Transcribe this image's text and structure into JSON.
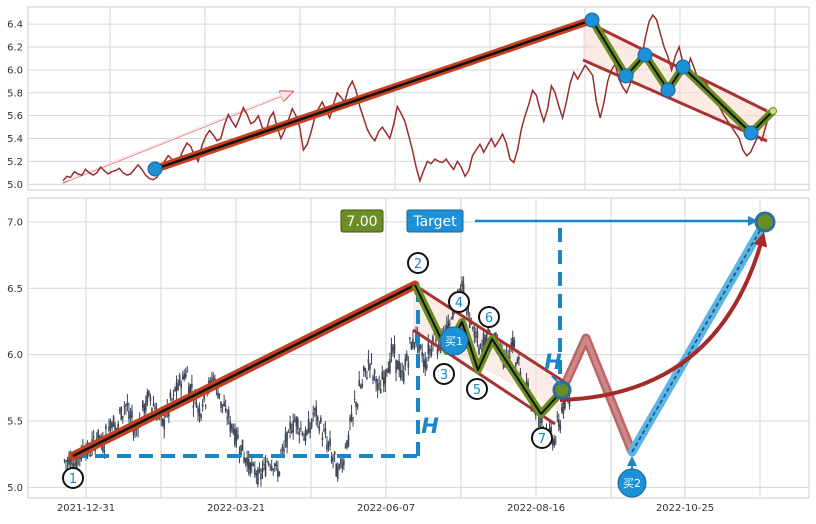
{
  "chart_data": [
    {
      "type": "line",
      "panel": "overview",
      "ylim": [
        4.95,
        6.55
      ],
      "yticks": [
        "5.0",
        "5.2",
        "5.4",
        "5.6",
        "5.8",
        "6.0",
        "6.2",
        "6.4"
      ],
      "grid": true,
      "series": [
        {
          "values": [
            5.03,
            5.07,
            5.06,
            5.11,
            5.09,
            5.08,
            5.13,
            5.1,
            5.08,
            5.1,
            5.15,
            5.12,
            5.09,
            5.11,
            5.12,
            5.14,
            5.1,
            5.08,
            5.09,
            5.13,
            5.17,
            5.13,
            5.08,
            5.05,
            5.04,
            5.06,
            5.12,
            5.2,
            5.25,
            5.22,
            5.18,
            5.22,
            5.3,
            5.36,
            5.33,
            5.25,
            5.2,
            5.34,
            5.42,
            5.47,
            5.43,
            5.38,
            5.4,
            5.52,
            5.61,
            5.55,
            5.5,
            5.58,
            5.67,
            5.61,
            5.53,
            5.55,
            5.6,
            5.5,
            5.45,
            5.58,
            5.63,
            5.5,
            5.4,
            5.47,
            5.56,
            5.66,
            5.6,
            5.5,
            5.3,
            5.35,
            5.45,
            5.58,
            5.66,
            5.72,
            5.65,
            5.58,
            5.7,
            5.8,
            5.76,
            5.72,
            5.84,
            5.9,
            5.82,
            5.68,
            5.58,
            5.48,
            5.42,
            5.38,
            5.46,
            5.5,
            5.45,
            5.4,
            5.52,
            5.68,
            5.62,
            5.55,
            5.43,
            5.3,
            5.15,
            5.03,
            5.12,
            5.2,
            5.18,
            5.22,
            5.2,
            5.19,
            5.22,
            5.17,
            5.13,
            5.2,
            5.15,
            5.07,
            5.12,
            5.25,
            5.3,
            5.35,
            5.28,
            5.34,
            5.4,
            5.33,
            5.38,
            5.44,
            5.36,
            5.22,
            5.19,
            5.3,
            5.48,
            5.6,
            5.7,
            5.82,
            5.78,
            5.65,
            5.55,
            5.66,
            5.86,
            5.8,
            5.68,
            5.58,
            5.72,
            5.88,
            5.98,
            5.92,
            5.98,
            6.04,
            6.0,
            5.95,
            5.72,
            5.58,
            5.72,
            5.9,
            6.0,
            6.05,
            5.92,
            5.85,
            5.8,
            5.88,
            6.0,
            6.05,
            6.1,
            6.28,
            6.42,
            6.48,
            6.44,
            6.32,
            6.2,
            6.12,
            6.0,
            6.12,
            6.2,
            6.07,
            5.98,
            6.1,
            6.02,
            5.92,
            5.85,
            5.9,
            5.84,
            5.78,
            5.72,
            5.66,
            5.6,
            5.55,
            5.5,
            5.45,
            5.4,
            5.3,
            5.25,
            5.28,
            5.35,
            5.42,
            5.38,
            5.5,
            5.6,
            5.65
          ]
        }
      ]
    },
    {
      "type": "bar",
      "panel": "candlestick",
      "ylim": [
        4.92,
        7.18
      ],
      "yticks": [
        "5.0",
        "5.5",
        "6.0",
        "6.5",
        "7.0"
      ],
      "xticks": [
        "2021-12-31",
        "2022-03-21",
        "2022-06-07",
        "2022-08-16",
        "2022-10-25"
      ],
      "grid": true,
      "pattern_points": [
        "1",
        "2",
        "3",
        "4",
        "5",
        "6",
        "7"
      ],
      "target_value": "7.00",
      "target_label": "Target",
      "height_label": "H",
      "buy_labels": [
        "买1",
        "买2"
      ],
      "series": [
        {
          "values": [
            5.2,
            5.22,
            5.18,
            5.24,
            5.3,
            5.27,
            5.33,
            5.38,
            5.32,
            5.42,
            5.5,
            5.45,
            5.56,
            5.62,
            5.52,
            5.44,
            5.5,
            5.6,
            5.68,
            5.62,
            5.55,
            5.48,
            5.56,
            5.66,
            5.74,
            5.8,
            5.86,
            5.76,
            5.66,
            5.58,
            5.66,
            5.76,
            5.82,
            5.72,
            5.62,
            5.54,
            5.46,
            5.38,
            5.3,
            5.22,
            5.16,
            5.12,
            5.08,
            5.14,
            5.2,
            5.18,
            5.12,
            5.26,
            5.36,
            5.46,
            5.5,
            5.44,
            5.38,
            5.46,
            5.56,
            5.48,
            5.4,
            5.32,
            5.22,
            5.12,
            5.2,
            5.34,
            5.5,
            5.64,
            5.76,
            5.86,
            5.94,
            5.84,
            5.74,
            5.82,
            5.92,
            6.02,
            5.92,
            5.84,
            5.96,
            6.08,
            6.12,
            6.02,
            5.94,
            6.04,
            6.14,
            6.06,
            6.12,
            6.2,
            6.32,
            6.44,
            6.5,
            6.36,
            6.24,
            6.12,
            6.04,
            6.12,
            6.22,
            6.14,
            6.06,
            5.96,
            6.02,
            6.08,
            5.94,
            5.82,
            5.74,
            5.66,
            5.58,
            5.5,
            5.44,
            5.4,
            5.36,
            5.48,
            5.6,
            5.66
          ]
        }
      ]
    }
  ],
  "colors": {
    "trend_red": "#c4401e",
    "trend_black": "#111111",
    "channel_red": "#a83232",
    "channel_green": "#6b8e23",
    "overview_line": "#9b2b2b",
    "marker_blue": "#1e90d6",
    "target_box_green": "#6b8e23",
    "target_box_blue": "#1e90d6",
    "dashed_blue": "#1a86c8",
    "arc_red": "#a52a2a",
    "candle": "#3c4656"
  }
}
